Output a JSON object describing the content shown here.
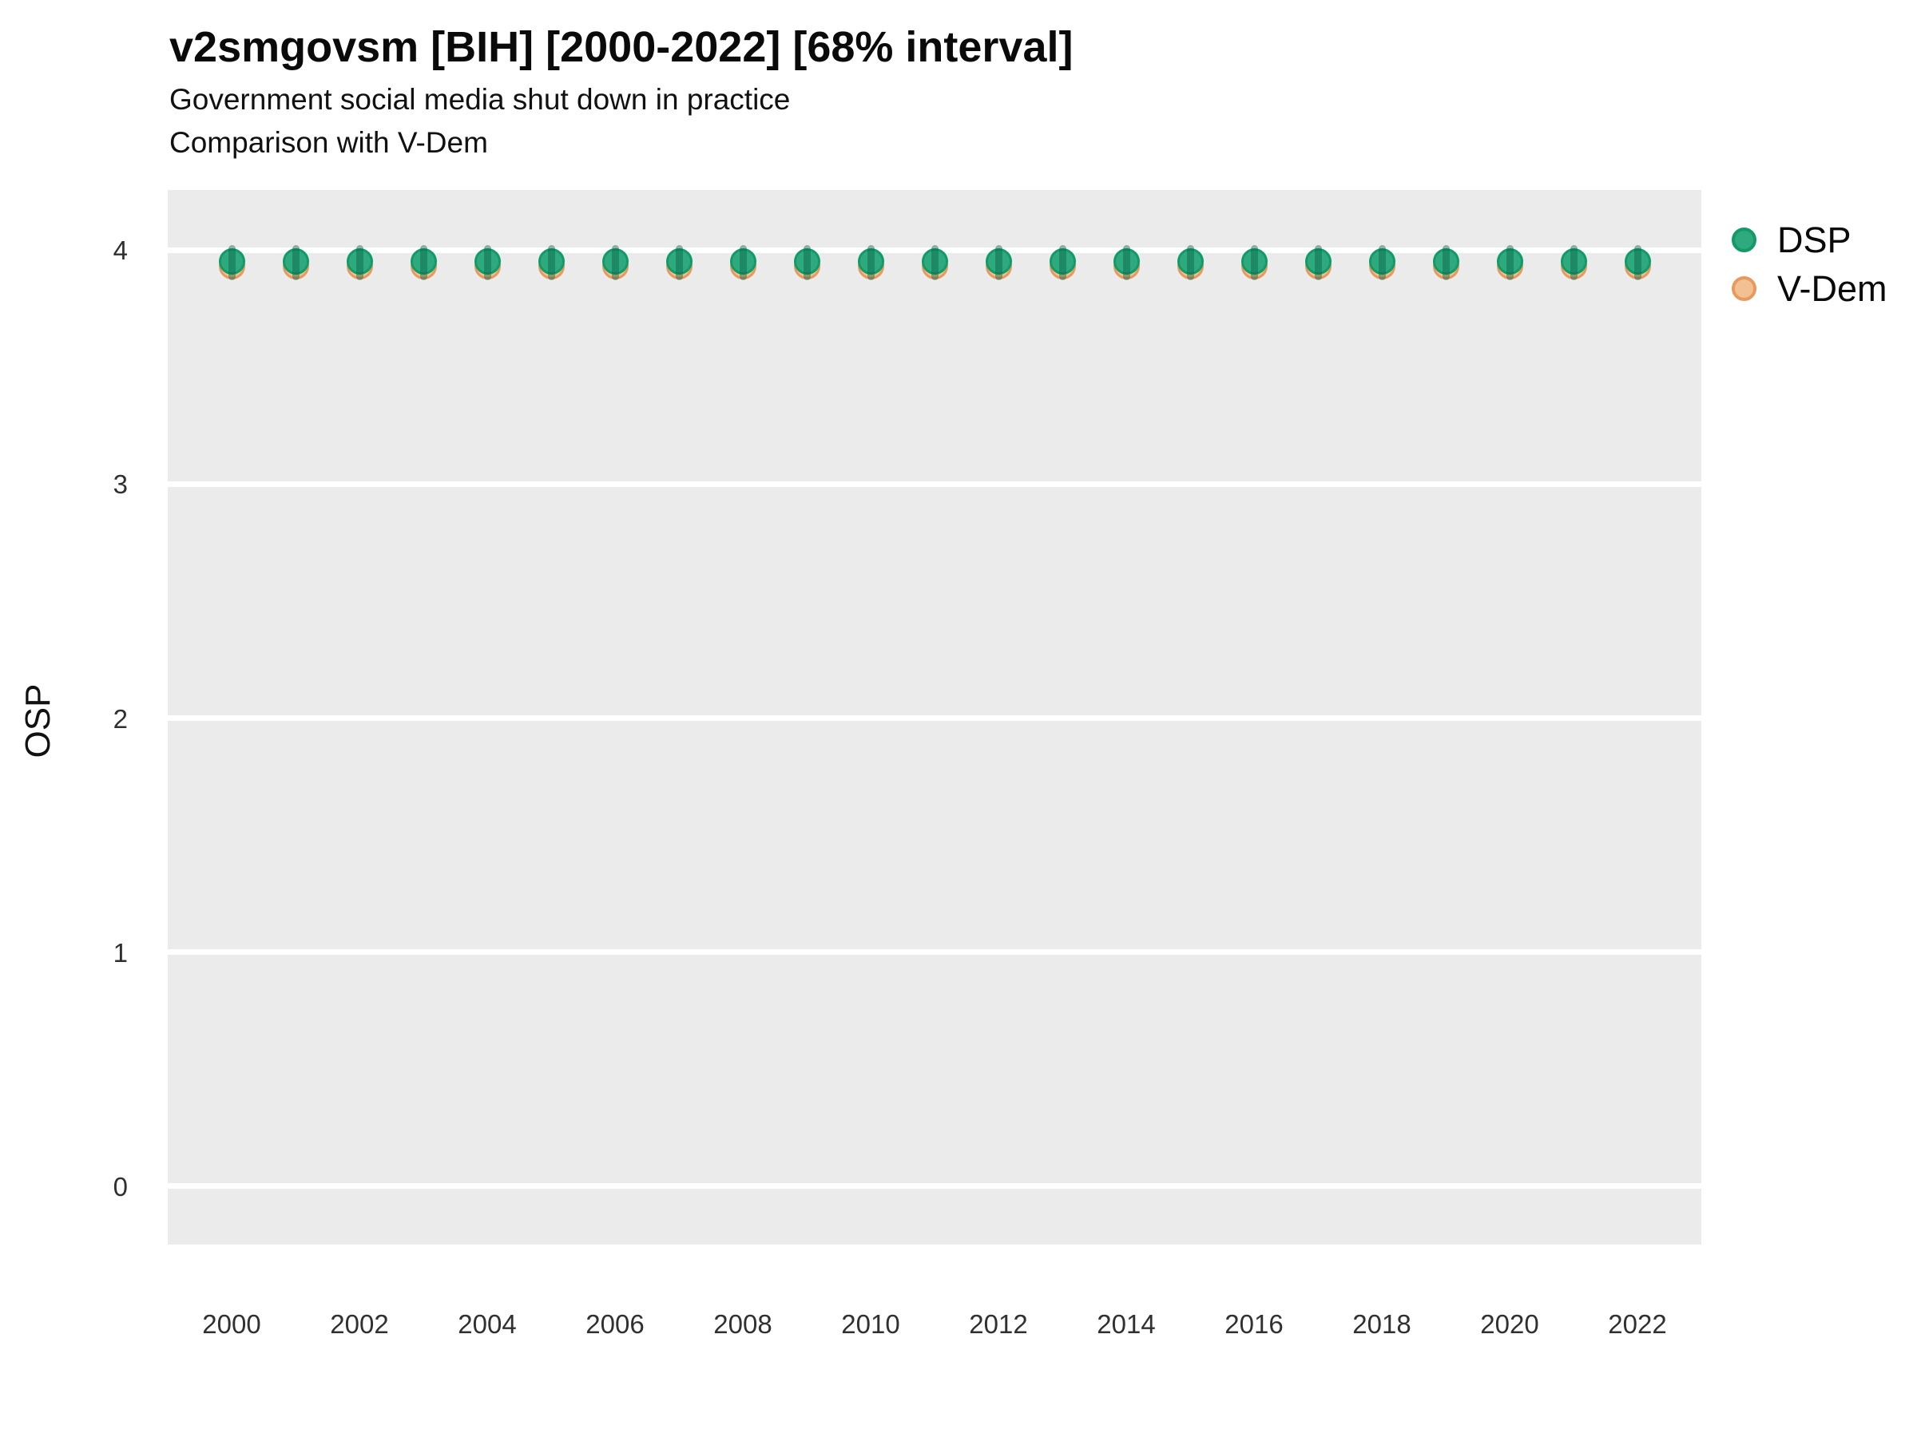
{
  "title": "v2smgovsm [BIH] [2000-2022] [68% interval]",
  "subtitle_line1": "Government social media shut down in practice",
  "subtitle_line2": "Comparison with V-Dem",
  "ylabel": "OSP",
  "legend": {
    "items": [
      {
        "label": "DSP",
        "fill": "#2FA97E",
        "stroke": "#129A67"
      },
      {
        "label": "V-Dem",
        "fill": "#F3C094",
        "stroke": "#E79A60"
      }
    ]
  },
  "colors": {
    "panel_bg": "#EBEBEB",
    "grid": "#FFFFFF",
    "dsp_fill": "#2FA97E",
    "dsp_stroke": "#129A67",
    "dsp_interval": "#0A6446",
    "vdem_fill": "#F3C094",
    "vdem_stroke": "#E79A60"
  },
  "chart_data": {
    "type": "scatter",
    "title": "v2smgovsm [BIH] [2000-2022] [68% interval]",
    "subtitle": "Government social media shut down in practice / Comparison with V-Dem",
    "xlabel": "",
    "ylabel": "OSP",
    "x": [
      2000,
      2001,
      2002,
      2003,
      2004,
      2005,
      2006,
      2007,
      2008,
      2009,
      2010,
      2011,
      2012,
      2013,
      2014,
      2015,
      2016,
      2017,
      2018,
      2019,
      2020,
      2021,
      2022
    ],
    "series": [
      {
        "name": "DSP",
        "values": [
          3.95,
          3.95,
          3.95,
          3.95,
          3.95,
          3.95,
          3.95,
          3.95,
          3.95,
          3.95,
          3.95,
          3.95,
          3.95,
          3.95,
          3.95,
          3.95,
          3.95,
          3.95,
          3.95,
          3.95,
          3.95,
          3.95,
          3.95
        ],
        "interval_low": [
          3.87,
          3.87,
          3.87,
          3.87,
          3.87,
          3.87,
          3.87,
          3.87,
          3.87,
          3.87,
          3.87,
          3.87,
          3.87,
          3.87,
          3.87,
          3.87,
          3.87,
          3.87,
          3.87,
          3.87,
          3.87,
          3.87,
          3.87
        ],
        "interval_high": [
          4.02,
          4.02,
          4.02,
          4.02,
          4.02,
          4.02,
          4.02,
          4.02,
          4.02,
          4.02,
          4.02,
          4.02,
          4.02,
          4.02,
          4.02,
          4.02,
          4.02,
          4.02,
          4.02,
          4.02,
          4.02,
          4.02,
          4.02
        ],
        "interval_label": "68% interval"
      },
      {
        "name": "V-Dem",
        "values": [
          3.93,
          3.93,
          3.93,
          3.93,
          3.93,
          3.93,
          3.93,
          3.93,
          3.93,
          3.93,
          3.93,
          3.93,
          3.93,
          3.93,
          3.93,
          3.93,
          3.93,
          3.93,
          3.93,
          3.93,
          3.93,
          3.93,
          3.93
        ]
      }
    ],
    "xticks": [
      2000,
      2002,
      2004,
      2006,
      2008,
      2010,
      2012,
      2014,
      2016,
      2018,
      2020,
      2022
    ],
    "yticks": [
      0,
      1,
      2,
      3,
      4
    ],
    "xlim": [
      1999,
      2023
    ],
    "ylim": [
      -0.249,
      4.256
    ],
    "grid": "major-horizontal-white",
    "legend_position": "right"
  }
}
